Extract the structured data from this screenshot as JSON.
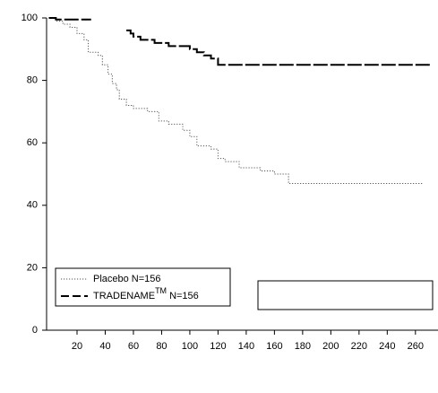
{
  "chart_data": {
    "type": "line",
    "step": true,
    "xlim": [
      0,
      276
    ],
    "ylim": [
      0,
      100
    ],
    "xticks": [
      20,
      40,
      60,
      80,
      100,
      120,
      140,
      160,
      180,
      200,
      220,
      240,
      260
    ],
    "yticks": [
      0,
      20,
      40,
      60,
      80,
      100
    ],
    "legend": "bottom-left",
    "series": [
      {
        "name": "Placebo N=156",
        "color": "#555555",
        "style": "dotted",
        "x": [
          0,
          5,
          10,
          15,
          20,
          25,
          28,
          35,
          38,
          42,
          45,
          48,
          50,
          55,
          60,
          70,
          78,
          85,
          95,
          100,
          105,
          115,
          120,
          125,
          135,
          150,
          160,
          170,
          200,
          265
        ],
        "values": [
          100,
          99,
          98,
          97,
          95,
          93,
          89,
          88,
          85,
          82,
          79,
          77,
          74,
          72,
          71,
          70,
          67,
          66,
          64,
          62,
          59,
          58,
          55,
          54,
          52,
          51,
          50,
          47,
          47,
          47
        ]
      },
      {
        "name": "TRADENAME",
        "name_sup": "TM",
        "name_rest": "N=156",
        "color": "#000000",
        "style": "dashed",
        "x": [
          0,
          5,
          30,
          40,
          55,
          58,
          60,
          65,
          75,
          85,
          100,
          105,
          110,
          115,
          120,
          140,
          200,
          272
        ],
        "values": [
          100,
          99.5,
          99.5,
          null,
          96,
          95,
          94,
          93,
          92,
          91,
          90,
          89,
          88,
          87,
          85,
          85,
          85,
          85
        ]
      }
    ]
  }
}
